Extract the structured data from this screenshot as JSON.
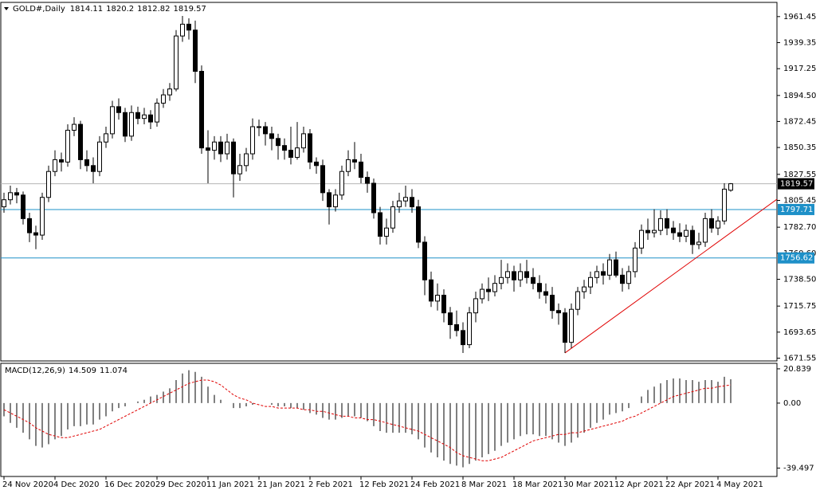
{
  "chart_data": [
    {
      "type": "candlestick",
      "title": "GOLD#,Daily",
      "up_color": "#ffffff",
      "down_color": "#000000",
      "categories": [
        "24 Nov 2020",
        null,
        null,
        null,
        null,
        null,
        null,
        null,
        "4 Dec 2020",
        null,
        null,
        null,
        null,
        null,
        null,
        null,
        "16 Dec 2020",
        null,
        null,
        null,
        null,
        null,
        null,
        null,
        "29 Dec 2020",
        null,
        null,
        null,
        null,
        null,
        null,
        null,
        "11 Jan 2021",
        null,
        null,
        null,
        null,
        null,
        null,
        null,
        "21 Jan 2021",
        null,
        null,
        null,
        null,
        null,
        null,
        null,
        "2 Feb 2021",
        null,
        null,
        null,
        null,
        null,
        null,
        null,
        "12 Feb 2021",
        null,
        null,
        null,
        null,
        null,
        null,
        null,
        "24 Feb 2021",
        null,
        null,
        null,
        null,
        null,
        null,
        null,
        "8 Mar 2021",
        null,
        null,
        null,
        null,
        null,
        null,
        null,
        "18 Mar 2021",
        null,
        null,
        null,
        null,
        null,
        null,
        null,
        "30 Mar 2021",
        null,
        null,
        null,
        null,
        null,
        null,
        null,
        "12 Apr 2021",
        null,
        null,
        null,
        null,
        null,
        null,
        null,
        "22 Apr 2021",
        null,
        null,
        null,
        null,
        null,
        null,
        null,
        "4 May 2021",
        null,
        null
      ],
      "ohlc": [
        [
          1800,
          1812,
          1795,
          1806
        ],
        [
          1806,
          1818,
          1802,
          1812
        ],
        [
          1812,
          1816,
          1803,
          1810
        ],
        [
          1810,
          1813,
          1785,
          1790
        ],
        [
          1790,
          1795,
          1770,
          1778
        ],
        [
          1778,
          1784,
          1764,
          1776
        ],
        [
          1776,
          1812,
          1772,
          1808
        ],
        [
          1808,
          1835,
          1804,
          1830
        ],
        [
          1830,
          1848,
          1826,
          1840
        ],
        [
          1840,
          1846,
          1830,
          1838
        ],
        [
          1838,
          1870,
          1834,
          1865
        ],
        [
          1865,
          1876,
          1860,
          1870
        ],
        [
          1870,
          1873,
          1832,
          1840
        ],
        [
          1840,
          1848,
          1830,
          1835
        ],
        [
          1835,
          1842,
          1820,
          1830
        ],
        [
          1830,
          1860,
          1826,
          1855
        ],
        [
          1855,
          1868,
          1850,
          1862
        ],
        [
          1862,
          1890,
          1858,
          1885
        ],
        [
          1885,
          1892,
          1874,
          1880
        ],
        [
          1880,
          1884,
          1855,
          1860
        ],
        [
          1860,
          1886,
          1856,
          1880
        ],
        [
          1880,
          1885,
          1870,
          1875
        ],
        [
          1875,
          1884,
          1870,
          1878
        ],
        [
          1878,
          1882,
          1866,
          1872
        ],
        [
          1872,
          1892,
          1868,
          1888
        ],
        [
          1888,
          1900,
          1884,
          1895
        ],
        [
          1895,
          1905,
          1890,
          1900
        ],
        [
          1900,
          1950,
          1898,
          1945
        ],
        [
          1945,
          1962,
          1940,
          1955
        ],
        [
          1955,
          1960,
          1942,
          1950
        ],
        [
          1950,
          1958,
          1905,
          1915
        ],
        [
          1915,
          1920,
          1845,
          1850
        ],
        [
          1850,
          1865,
          1820,
          1848
        ],
        [
          1848,
          1860,
          1840,
          1855
        ],
        [
          1855,
          1860,
          1838,
          1845
        ],
        [
          1845,
          1862,
          1840,
          1855
        ],
        [
          1855,
          1858,
          1808,
          1828
        ],
        [
          1828,
          1845,
          1822,
          1835
        ],
        [
          1835,
          1850,
          1830,
          1845
        ],
        [
          1845,
          1875,
          1840,
          1868
        ],
        [
          1868,
          1874,
          1860,
          1868
        ],
        [
          1868,
          1872,
          1852,
          1862
        ],
        [
          1862,
          1868,
          1848,
          1858
        ],
        [
          1858,
          1862,
          1840,
          1852
        ],
        [
          1852,
          1858,
          1840,
          1848
        ],
        [
          1848,
          1868,
          1836,
          1842
        ],
        [
          1842,
          1872,
          1840,
          1850
        ],
        [
          1850,
          1868,
          1846,
          1862
        ],
        [
          1862,
          1866,
          1832,
          1838
        ],
        [
          1838,
          1842,
          1828,
          1835
        ],
        [
          1835,
          1840,
          1805,
          1812
        ],
        [
          1812,
          1815,
          1785,
          1800
        ],
        [
          1800,
          1815,
          1796,
          1810
        ],
        [
          1810,
          1835,
          1806,
          1830
        ],
        [
          1830,
          1848,
          1826,
          1840
        ],
        [
          1840,
          1855,
          1832,
          1838
        ],
        [
          1838,
          1845,
          1820,
          1825
        ],
        [
          1825,
          1830,
          1812,
          1820
        ],
        [
          1820,
          1824,
          1790,
          1795
        ],
        [
          1795,
          1800,
          1768,
          1775
        ],
        [
          1775,
          1790,
          1768,
          1782
        ],
        [
          1782,
          1805,
          1778,
          1800
        ],
        [
          1800,
          1812,
          1795,
          1805
        ],
        [
          1805,
          1818,
          1800,
          1808
        ],
        [
          1808,
          1815,
          1795,
          1800
        ],
        [
          1800,
          1806,
          1765,
          1770
        ],
        [
          1770,
          1775,
          1725,
          1738
        ],
        [
          1738,
          1745,
          1715,
          1720
        ],
        [
          1720,
          1735,
          1712,
          1725
        ],
        [
          1725,
          1730,
          1702,
          1710
        ],
        [
          1710,
          1715,
          1688,
          1700
        ],
        [
          1700,
          1712,
          1690,
          1695
        ],
        [
          1695,
          1702,
          1676,
          1683
        ],
        [
          1683,
          1715,
          1680,
          1710
        ],
        [
          1710,
          1728,
          1702,
          1722
        ],
        [
          1722,
          1735,
          1718,
          1730
        ],
        [
          1730,
          1740,
          1720,
          1728
        ],
        [
          1728,
          1742,
          1724,
          1735
        ],
        [
          1735,
          1755,
          1730,
          1740
        ],
        [
          1740,
          1752,
          1735,
          1745
        ],
        [
          1745,
          1750,
          1728,
          1738
        ],
        [
          1738,
          1752,
          1732,
          1745
        ],
        [
          1745,
          1755,
          1735,
          1740
        ],
        [
          1740,
          1748,
          1730,
          1735
        ],
        [
          1735,
          1742,
          1722,
          1728
        ],
        [
          1728,
          1735,
          1718,
          1725
        ],
        [
          1725,
          1732,
          1705,
          1712
        ],
        [
          1712,
          1718,
          1700,
          1710
        ],
        [
          1710,
          1714,
          1676,
          1685
        ],
        [
          1685,
          1718,
          1680,
          1713
        ],
        [
          1713,
          1732,
          1708,
          1728
        ],
        [
          1728,
          1738,
          1722,
          1732
        ],
        [
          1732,
          1745,
          1726,
          1740
        ],
        [
          1740,
          1750,
          1735,
          1745
        ],
        [
          1745,
          1752,
          1734,
          1742
        ],
        [
          1742,
          1760,
          1738,
          1755
        ],
        [
          1755,
          1762,
          1740,
          1742
        ],
        [
          1742,
          1748,
          1728,
          1735
        ],
        [
          1735,
          1750,
          1730,
          1745
        ],
        [
          1745,
          1770,
          1740,
          1765
        ],
        [
          1765,
          1785,
          1760,
          1780
        ],
        [
          1780,
          1790,
          1772,
          1778
        ],
        [
          1778,
          1798,
          1774,
          1780
        ],
        [
          1780,
          1797,
          1776,
          1790
        ],
        [
          1790,
          1798,
          1776,
          1782
        ],
        [
          1782,
          1788,
          1772,
          1778
        ],
        [
          1778,
          1786,
          1770,
          1775
        ],
        [
          1775,
          1785,
          1770,
          1780
        ],
        [
          1780,
          1784,
          1760,
          1768
        ],
        [
          1768,
          1778,
          1764,
          1770
        ],
        [
          1770,
          1795,
          1766,
          1790
        ],
        [
          1790,
          1798,
          1778,
          1782
        ],
        [
          1782,
          1792,
          1776,
          1788
        ],
        [
          1788,
          1820,
          1785,
          1815
        ],
        [
          1814.11,
          1820.2,
          1812.82,
          1819.57
        ]
      ],
      "levels": [
        {
          "value": 1797.71,
          "label": "1797.71",
          "color": "#1e90c8"
        },
        {
          "value": 1756.62,
          "label": "1756.62",
          "color": "#1e90c8"
        }
      ],
      "current_line_color": "#b4b4b4",
      "trendline": {
        "color": "#e00000",
        "x": [
          88,
          114
        ],
        "y": [
          1676,
          1778
        ]
      },
      "ylim": [
        1669.2,
        1973.5
      ],
      "yticks": [
        1961.45,
        1939.35,
        1917.25,
        {
          "value": 1894.5,
          "label": "1894.50"
        },
        1872.45,
        1850.35,
        1827.55,
        1805.45,
        {
          "value": 1782.7,
          "label": "1782.70"
        },
        {
          "value": 1760.6,
          "label": "1760.60"
        },
        {
          "value": 1738.5,
          "label": "1738.50"
        },
        1715.75,
        1693.65,
        1671.55
      ]
    },
    {
      "type": "macd",
      "title": "MACD(12,26,9)",
      "series": [
        {
          "color": "#000000",
          "style": "histogram",
          "values": [
            -8,
            -12,
            -15,
            -18,
            -22,
            -26,
            -27,
            -25,
            -22,
            -20,
            -16,
            -14,
            -14,
            -13,
            -13,
            -10,
            -8,
            -5,
            -3,
            -2,
            0,
            1,
            2,
            4,
            5,
            7,
            9,
            14,
            18,
            20,
            19,
            16,
            10,
            5,
            2,
            0,
            -3,
            -3,
            -2,
            -1,
            0,
            0,
            -1,
            -2,
            -2,
            -3,
            -3,
            -4,
            -6,
            -7,
            -9,
            -10,
            -10,
            -9,
            -8,
            -8,
            -9,
            -11,
            -14,
            -17,
            -18,
            -18,
            -18,
            -18,
            -19,
            -22,
            -27,
            -30,
            -33,
            -35,
            -37,
            -38,
            -39,
            -37,
            -35,
            -33,
            -31,
            -29,
            -26,
            -24,
            -22,
            -20,
            -19,
            -19,
            -20,
            -20,
            -22,
            -24,
            -26,
            -24,
            -21,
            -18,
            -15,
            -12,
            -10,
            -7,
            -6,
            -5,
            -3,
            0,
            4,
            8,
            10,
            12,
            14,
            15,
            15,
            14,
            14,
            13,
            14,
            14,
            13,
            16,
            14.509
          ]
        },
        {
          "color": "#e00000",
          "style": "dashed",
          "values": [
            -4,
            -6,
            -8,
            -10,
            -12,
            -15,
            -17,
            -19,
            -20,
            -21,
            -21,
            -20,
            -19,
            -18,
            -17,
            -16,
            -14,
            -12,
            -10,
            -8,
            -6,
            -4,
            -2,
            0,
            2,
            4,
            6,
            8,
            10,
            12,
            13,
            14,
            14,
            13,
            11,
            8,
            5,
            3,
            2,
            0,
            -1,
            -2,
            -2,
            -3,
            -3,
            -3,
            -3,
            -4,
            -4,
            -5,
            -5,
            -6,
            -7,
            -8,
            -8,
            -9,
            -9,
            -10,
            -10,
            -11,
            -12,
            -13,
            -14,
            -15,
            -16,
            -17,
            -19,
            -21,
            -23,
            -25,
            -27,
            -30,
            -32,
            -33,
            -34,
            -35,
            -35,
            -34,
            -33,
            -31,
            -29,
            -27,
            -25,
            -23,
            -22,
            -21,
            -20,
            -19,
            -19,
            -18,
            -18,
            -17,
            -16,
            -15,
            -14,
            -13,
            -12,
            -11,
            -9,
            -8,
            -6,
            -4,
            -2,
            0,
            2,
            4,
            5,
            6,
            7,
            8,
            9,
            9,
            10,
            10.5,
            11.074
          ]
        }
      ],
      "ylim": [
        -44.6,
        23.7
      ],
      "yticks": [
        20.839,
        {
          "value": 0,
          "label": "0.00"
        },
        -39.497
      ]
    }
  ]
}
